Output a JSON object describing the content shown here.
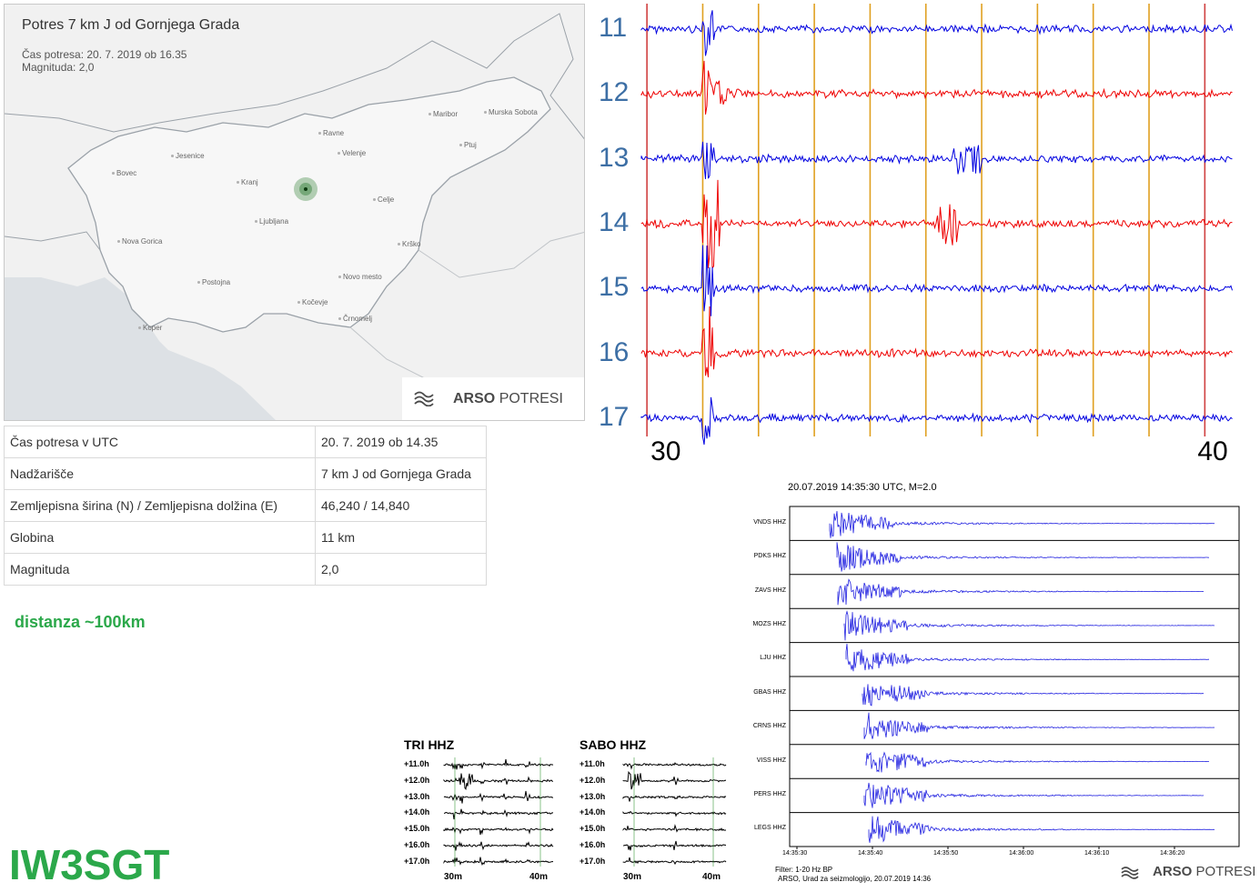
{
  "map": {
    "title": "Potres 7 km J od Gornjega Grada",
    "time_line": "Čas potresa: 20. 7. 2019 ob 16.35",
    "magnitude_line": "Magnituda: 2,0",
    "brand_bold": "ARSO",
    "brand_light": "POTRESI",
    "cities": [
      "Maribor",
      "Murska Sobota",
      "Ravne",
      "Ptuj",
      "Jesenice",
      "Velenje",
      "Bovec",
      "Kranj",
      "Celje",
      "Ljubljana",
      "Nova Gorica",
      "Krško",
      "Novo mesto",
      "Postojna",
      "Kočevje",
      "Koper",
      "Črnomelj"
    ]
  },
  "info_table": [
    {
      "key": "Čas potresa v UTC",
      "value": "20. 7. 2019 ob 14.35"
    },
    {
      "key": "Nadžarišče",
      "value": "7 km J od Gornjega Grada"
    },
    {
      "key": "Zemljepisna širina (N) / Zemljepisna dolžina (E)",
      "value": "46,240 / 14,840"
    },
    {
      "key": "Globina",
      "value": "11 km"
    },
    {
      "key": "Magnituda",
      "value": "2,0"
    }
  ],
  "distance_note": "distanza ~100km",
  "callsign": "IW3SGT",
  "chart_data": [
    {
      "type": "line",
      "description_rows": [
        "11",
        "12",
        "13",
        "14",
        "15",
        "16",
        "17"
      ],
      "x_tick_labels": [
        "30",
        "40"
      ],
      "row_colors": [
        "#0000e0",
        "#ee0000",
        "#0000e0",
        "#ee0000",
        "#0000e0",
        "#ee0000",
        "#0000e0"
      ],
      "marker_lines_colors": {
        "minute": "#e0a020",
        "ten_minute": "#d04040"
      },
      "event_minute": 31,
      "xlim_minutes": [
        29.9,
        40.5
      ]
    },
    {
      "type": "line",
      "title": "20.07.2019  14:35:30 UTC, M=2.0",
      "stations": [
        "VNDS HHZ",
        "PDKS HHZ",
        "ZAVS HHZ",
        "MOZS HHZ",
        "LJU HHZ",
        "GBAS HHZ",
        "CRNS HHZ",
        "VISS HHZ",
        "PERS HHZ",
        "LEGS HHZ"
      ],
      "x_tick_labels": [
        "14:35:30",
        "14:35:40",
        "14:35:50",
        "14:36:00",
        "14:36:10",
        "14:36:20"
      ],
      "footer_filter": "Filter: 1-20 Hz BP",
      "footer_source": "ARSO, Urad za seizmologijo, 20.07.2019  14:36",
      "brand_bold": "ARSO",
      "brand_light": "POTRESI",
      "line_color": "#2020e0"
    },
    {
      "type": "line",
      "title": "TRI HHZ",
      "rows": [
        "+11.0h",
        "+12.0h",
        "+13.0h",
        "+14.0h",
        "+15.0h",
        "+16.0h",
        "+17.0h"
      ],
      "x_tick_labels": [
        "30m",
        "40m"
      ]
    },
    {
      "type": "line",
      "title": "SABO HHZ",
      "rows": [
        "+11.0h",
        "+12.0h",
        "+13.0h",
        "+14.0h",
        "+15.0h",
        "+16.0h",
        "+17.0h"
      ],
      "x_tick_labels": [
        "30m",
        "40m"
      ]
    }
  ]
}
